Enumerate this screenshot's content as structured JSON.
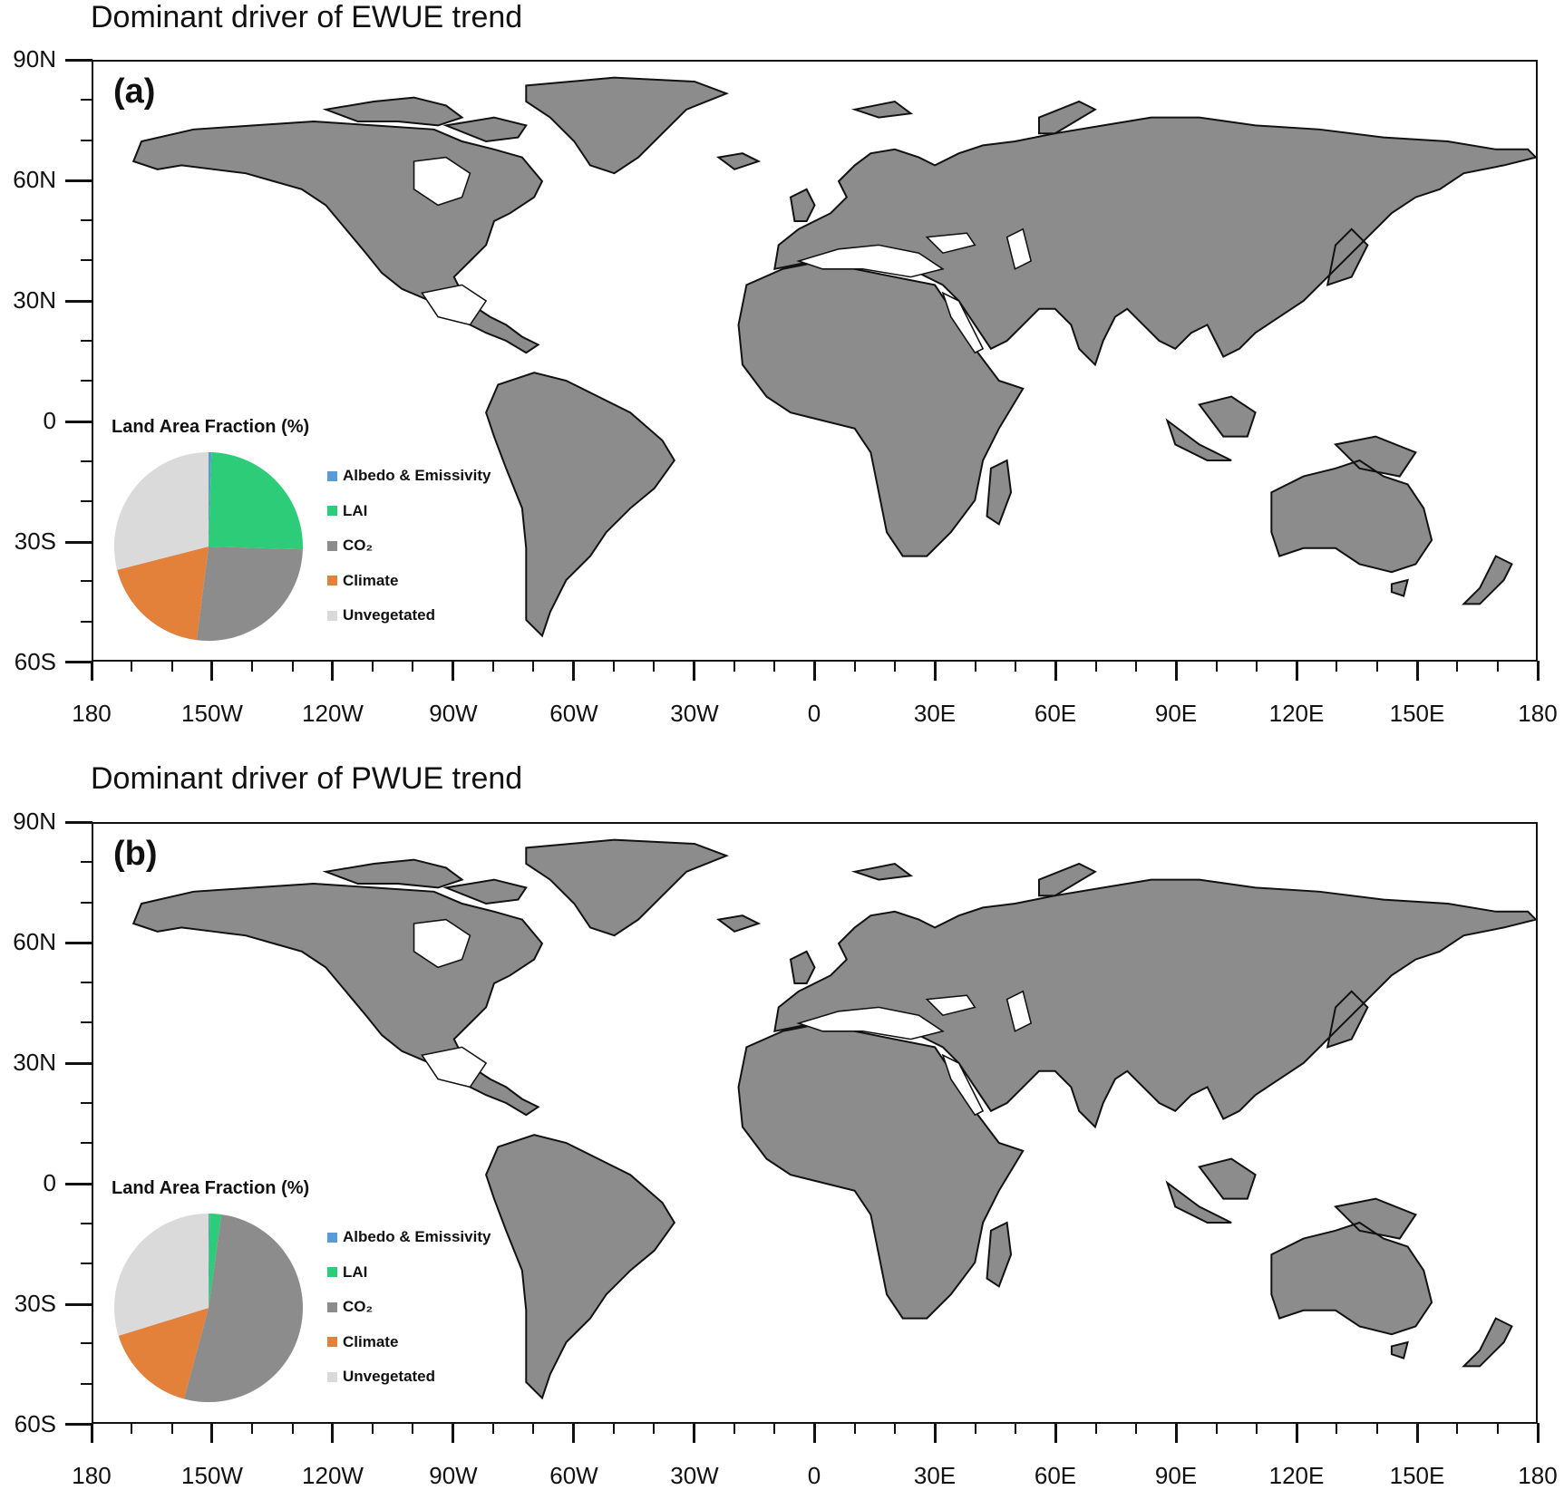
{
  "colors": {
    "albedo": "#5b9bd5",
    "lai": "#2dcc78",
    "co2": "#8c8c8c",
    "climate": "#e3803a",
    "unvegetated": "#dadada",
    "coast": "#111111"
  },
  "axes": {
    "y_ticks": [
      "90N",
      "60N",
      "30N",
      "0",
      "30S",
      "60S"
    ],
    "x_ticks": [
      "180",
      "150W",
      "120W",
      "90W",
      "60W",
      "30W",
      "0",
      "30E",
      "60E",
      "90E",
      "120E",
      "150E",
      "180"
    ]
  },
  "legend": {
    "title": "Land Area Fraction (%)",
    "items": [
      {
        "key": "albedo",
        "label": "Albedo & Emissivity"
      },
      {
        "key": "lai",
        "label": "LAI"
      },
      {
        "key": "co2",
        "label": "CO₂"
      },
      {
        "key": "climate",
        "label": "Climate"
      },
      {
        "key": "unvegetated",
        "label": "Unvegetated"
      }
    ]
  },
  "panels": [
    {
      "id": "a",
      "letter": "(a)",
      "title": "Dominant driver of EWUE trend"
    },
    {
      "id": "b",
      "letter": "(b)",
      "title": "Dominant driver of PWUE trend"
    }
  ],
  "chart_data": [
    {
      "type": "heatmap",
      "subtype": "categorical world map with inset pie",
      "title": "Dominant driver of EWUE trend",
      "panel": "(a)",
      "xlabel": "",
      "ylabel": "",
      "xlim": [
        -180,
        180
      ],
      "ylim": [
        -60,
        90
      ],
      "x_tick_labels": [
        "180",
        "150W",
        "120W",
        "90W",
        "60W",
        "30W",
        "0",
        "30E",
        "60E",
        "90E",
        "120E",
        "150E",
        "180"
      ],
      "y_tick_labels": [
        "90N",
        "60N",
        "30N",
        "0",
        "30S",
        "60S"
      ],
      "grid": false,
      "categories": [
        "Albedo & Emissivity",
        "LAI",
        "CO₂",
        "Climate",
        "Unvegetated"
      ],
      "inset_pie": {
        "title": "Land Area Fraction (%)",
        "type": "pie",
        "categories": [
          "Albedo & Emissivity",
          "LAI",
          "CO₂",
          "Climate",
          "Unvegetated"
        ],
        "values": [
          0.5,
          24,
          27.5,
          19,
          29
        ]
      }
    },
    {
      "type": "heatmap",
      "subtype": "categorical world map with inset pie",
      "title": "Dominant driver of PWUE trend",
      "panel": "(b)",
      "xlabel": "",
      "ylabel": "",
      "xlim": [
        -180,
        180
      ],
      "ylim": [
        -60,
        90
      ],
      "x_tick_labels": [
        "180",
        "150W",
        "120W",
        "90W",
        "60W",
        "30W",
        "0",
        "30E",
        "60E",
        "90E",
        "120E",
        "150E",
        "180"
      ],
      "y_tick_labels": [
        "90N",
        "60N",
        "30N",
        "0",
        "30S",
        "60S"
      ],
      "grid": false,
      "categories": [
        "Albedo & Emissivity",
        "LAI",
        "CO₂",
        "Climate",
        "Unvegetated"
      ],
      "inset_pie": {
        "title": "Land Area Fraction (%)",
        "type": "pie",
        "categories": [
          "Albedo & Emissivity",
          "LAI",
          "CO₂",
          "Climate",
          "Unvegetated"
        ],
        "values": [
          0.2,
          2,
          52,
          16,
          29.8
        ]
      }
    }
  ]
}
